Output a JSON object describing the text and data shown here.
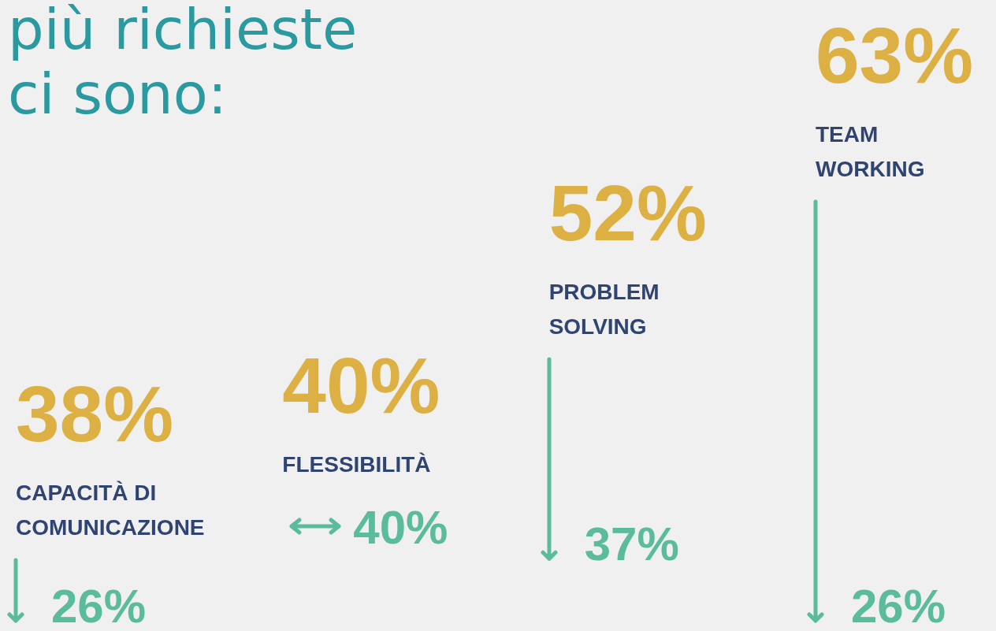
{
  "chart_data": {
    "type": "other",
    "title": "più richieste ci sono:",
    "categories": [
      "CAPACITÀ DI COMUNICAZIONE",
      "FLESSIBILITÀ",
      "PROBLEM SOLVING",
      "TEAM WORKING"
    ],
    "series": [
      {
        "color": "#dcb042",
        "values": [
          38,
          40,
          52,
          63
        ],
        "value_labels": [
          "38%",
          "40%",
          "52%",
          "63%"
        ]
      },
      {
        "color": "#5bbb9d",
        "values": [
          26,
          40,
          37,
          26
        ],
        "value_labels": [
          "26%",
          "40%",
          "37%",
          "26%"
        ]
      }
    ]
  }
}
